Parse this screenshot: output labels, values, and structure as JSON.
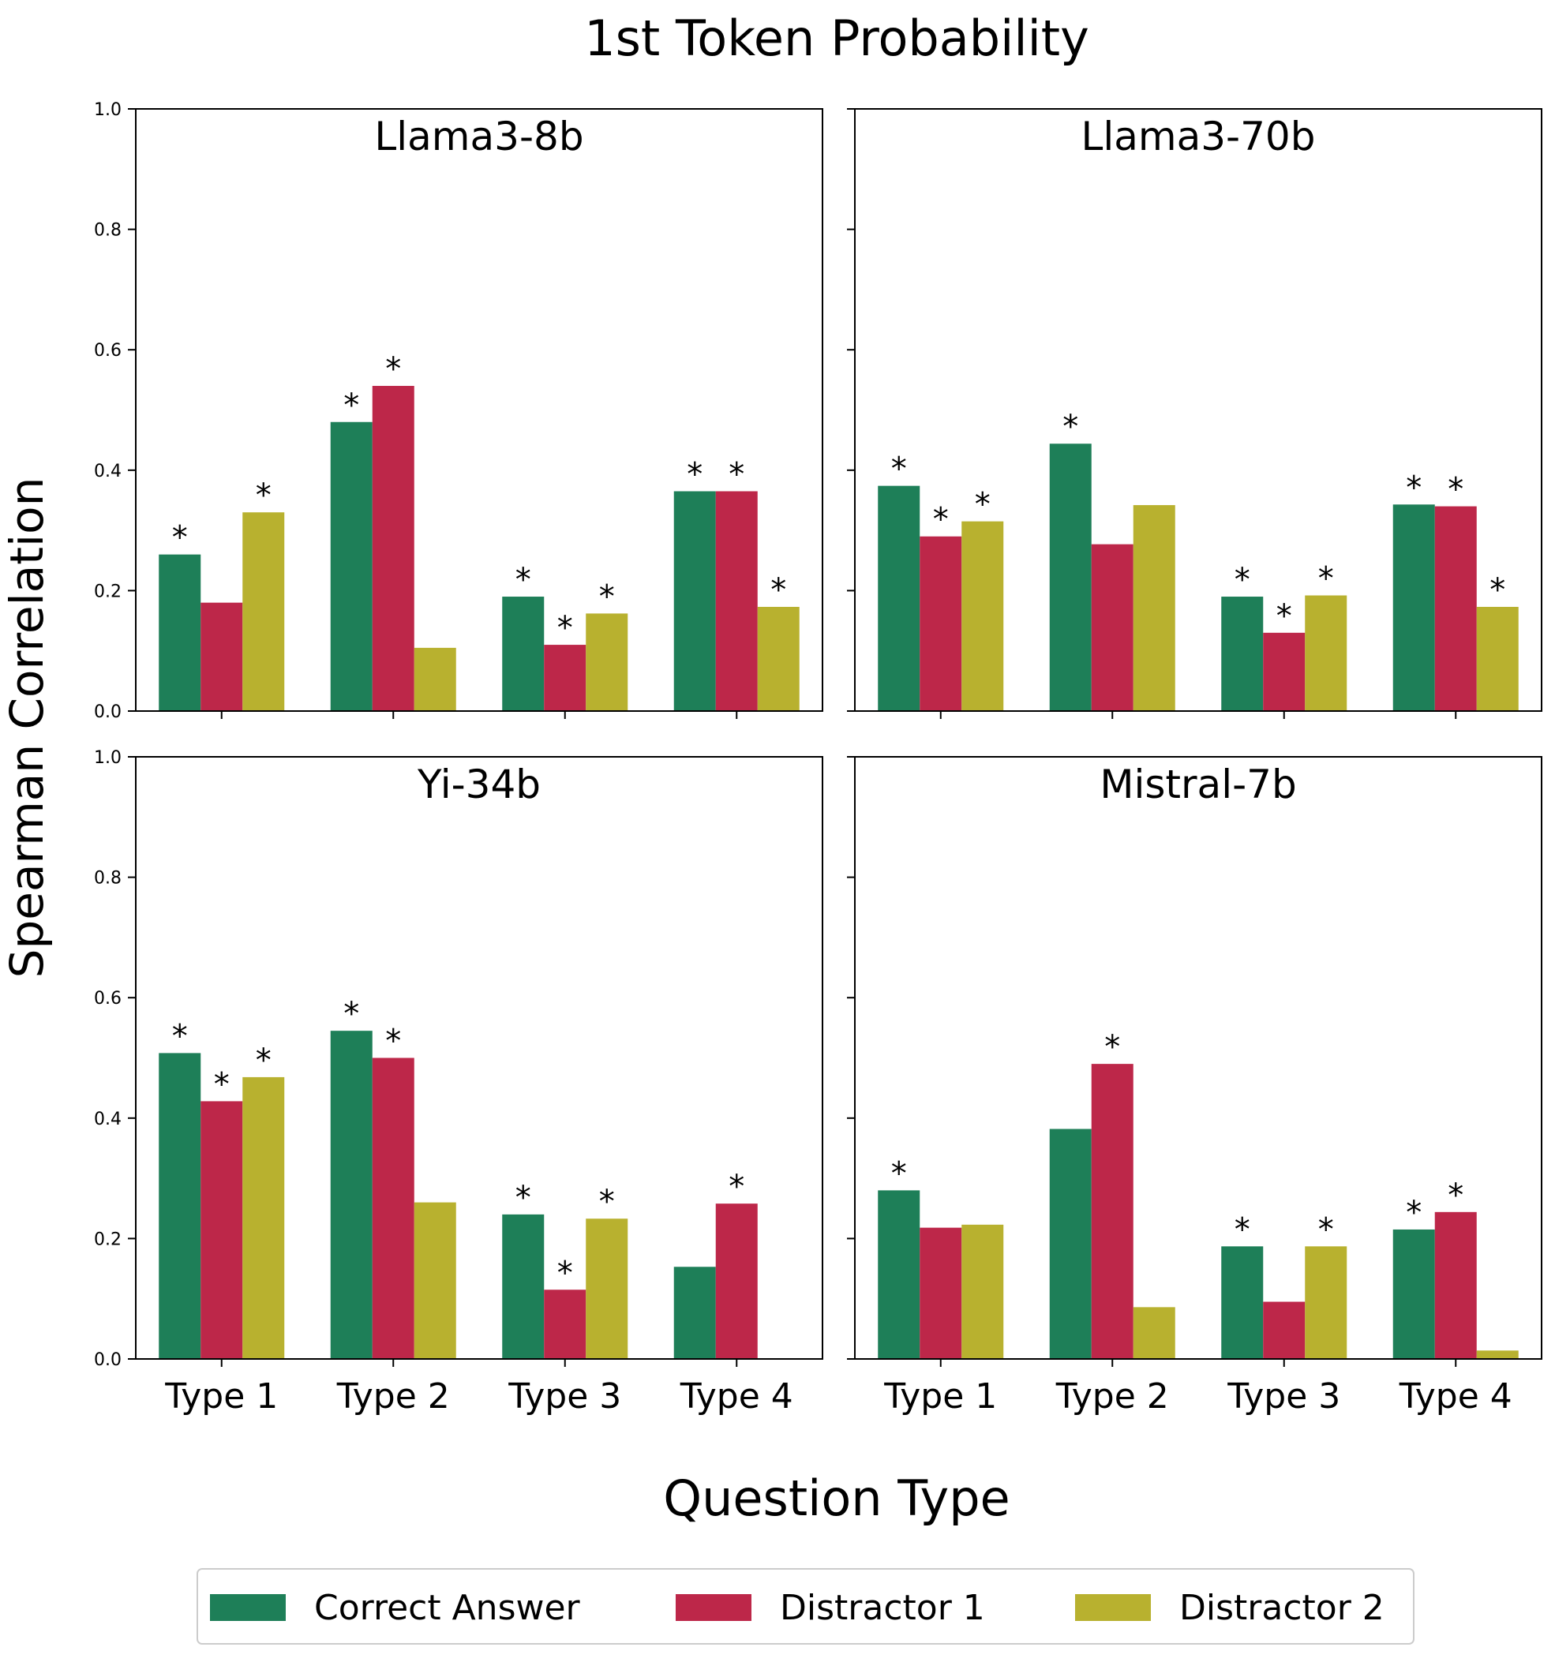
{
  "chart_data": {
    "type": "bar",
    "title": "1st Token Probability",
    "xlabel": "Question Type",
    "ylabel": "Spearman Correlation",
    "ylim": [
      0,
      1.0
    ],
    "yticks": [
      "0.0",
      "0.2",
      "0.4",
      "0.6",
      "0.8",
      "1.0"
    ],
    "categories": [
      "Type 1",
      "Type 2",
      "Type 3",
      "Type 4"
    ],
    "legend": {
      "placement": "bottom-center",
      "entries": [
        "Correct Answer",
        "Distractor 1",
        "Distractor 2"
      ]
    },
    "series_colors": [
      "#1e7f58",
      "#bd2749",
      "#b8b12f"
    ],
    "significance_marker": "*",
    "panels": [
      {
        "title": "Llama3-8b",
        "series": [
          {
            "name": "Correct Answer",
            "values": [
              0.26,
              0.48,
              0.19,
              0.365
            ],
            "significant": [
              true,
              true,
              true,
              true
            ]
          },
          {
            "name": "Distractor 1",
            "values": [
              0.18,
              0.54,
              0.11,
              0.365
            ],
            "significant": [
              false,
              true,
              true,
              true
            ]
          },
          {
            "name": "Distractor 2",
            "values": [
              0.33,
              0.105,
              0.162,
              0.173
            ],
            "significant": [
              true,
              false,
              true,
              true
            ]
          }
        ]
      },
      {
        "title": "Llama3-70b",
        "series": [
          {
            "name": "Correct Answer",
            "values": [
              0.374,
              0.444,
              0.19,
              0.343
            ],
            "significant": [
              true,
              true,
              true,
              true
            ]
          },
          {
            "name": "Distractor 1",
            "values": [
              0.29,
              0.277,
              0.13,
              0.34
            ],
            "significant": [
              true,
              false,
              true,
              true
            ]
          },
          {
            "name": "Distractor 2",
            "values": [
              0.315,
              0.342,
              0.192,
              0.173
            ],
            "significant": [
              true,
              false,
              true,
              true
            ]
          }
        ]
      },
      {
        "title": "Yi-34b",
        "series": [
          {
            "name": "Correct Answer",
            "values": [
              0.508,
              0.545,
              0.24,
              0.153
            ],
            "significant": [
              true,
              true,
              true,
              false
            ]
          },
          {
            "name": "Distractor 1",
            "values": [
              0.428,
              0.5,
              0.115,
              0.258
            ],
            "significant": [
              true,
              true,
              true,
              true
            ]
          },
          {
            "name": "Distractor 2",
            "values": [
              0.468,
              0.26,
              0.233,
              0.0
            ],
            "significant": [
              true,
              false,
              true,
              false
            ]
          }
        ]
      },
      {
        "title": "Mistral-7b",
        "series": [
          {
            "name": "Correct Answer",
            "values": [
              0.28,
              0.382,
              0.187,
              0.215
            ],
            "significant": [
              true,
              false,
              true,
              true
            ]
          },
          {
            "name": "Distractor 1",
            "values": [
              0.218,
              0.49,
              0.095,
              0.244
            ],
            "significant": [
              false,
              true,
              false,
              true
            ]
          },
          {
            "name": "Distractor 2",
            "values": [
              0.223,
              0.086,
              0.187,
              0.014
            ],
            "significant": [
              false,
              false,
              true,
              false
            ]
          }
        ]
      }
    ]
  }
}
